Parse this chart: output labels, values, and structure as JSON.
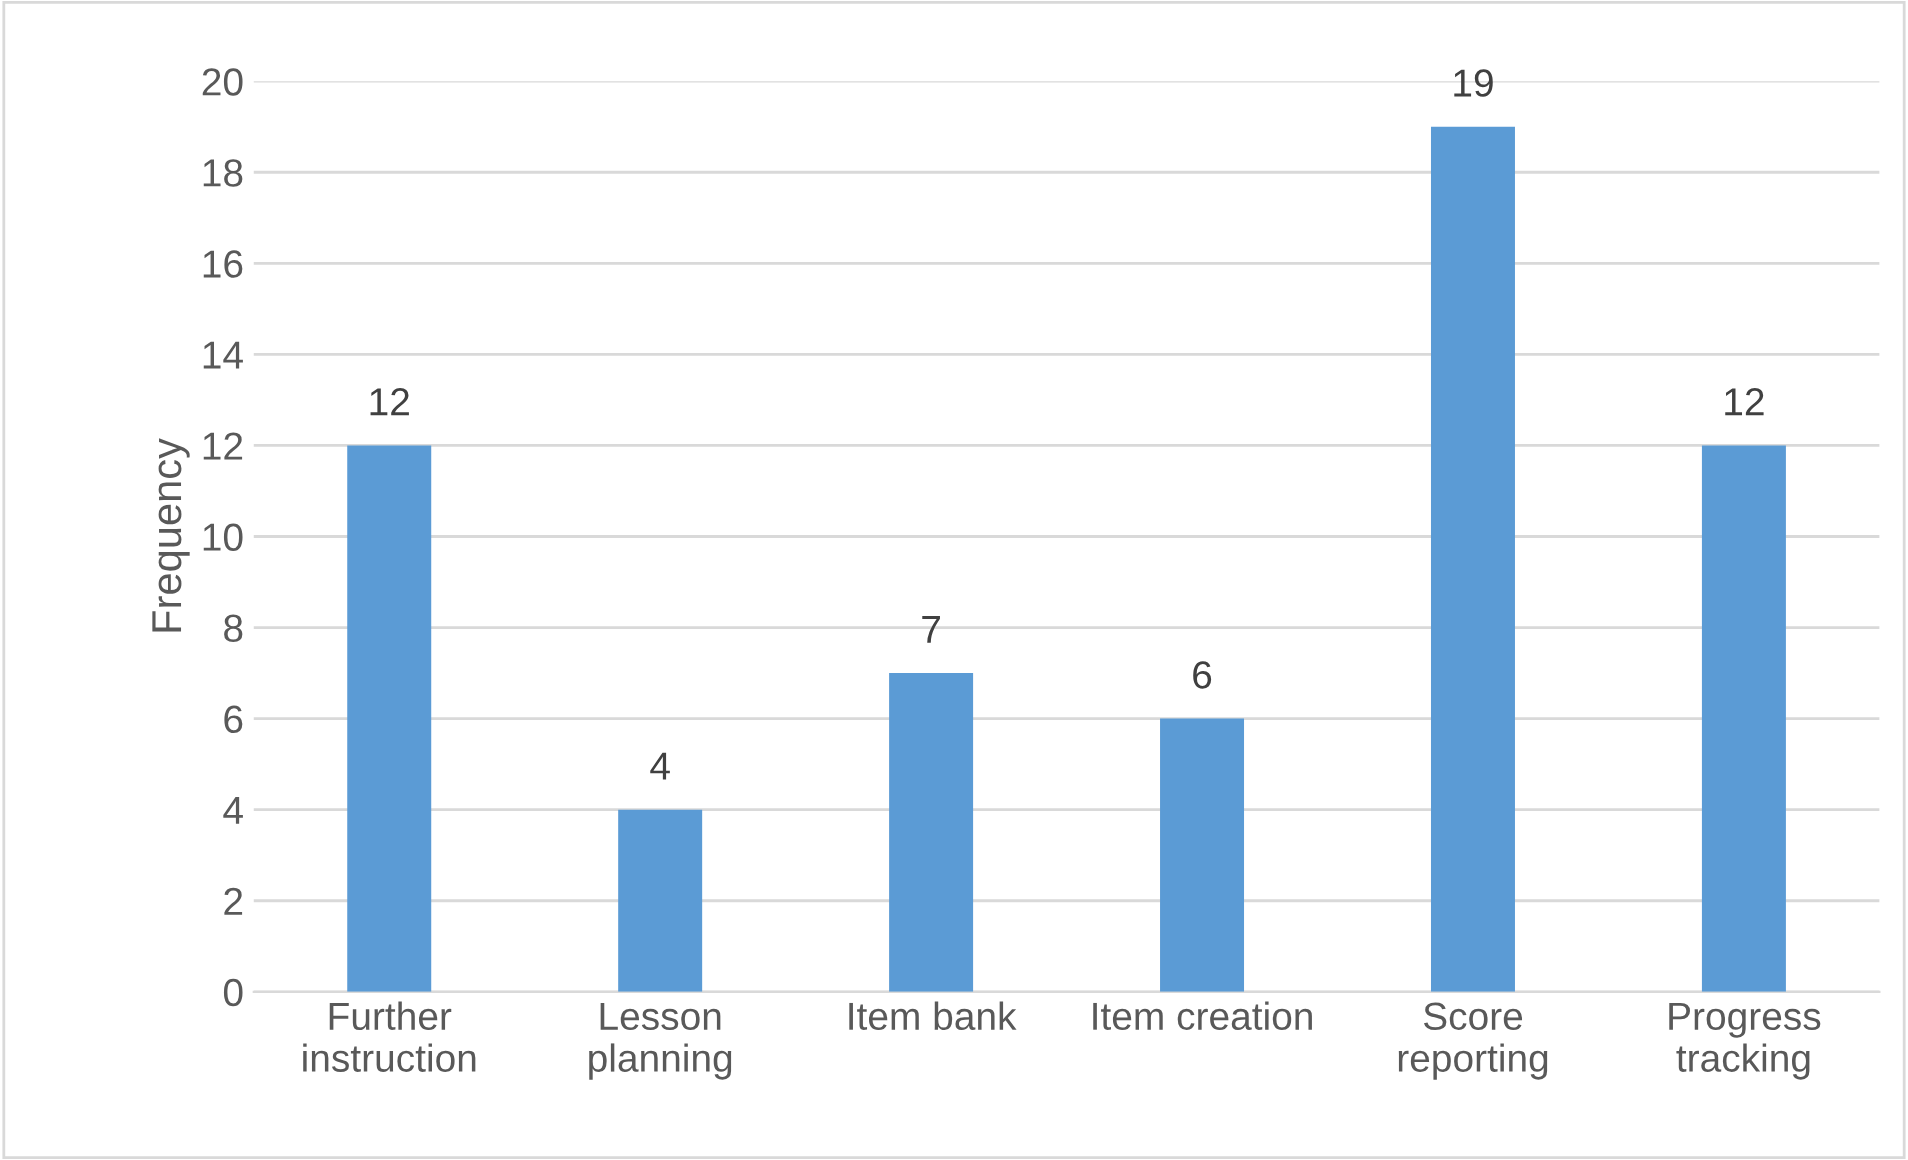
{
  "chart_data": {
    "type": "bar",
    "ylabel": "Frequency",
    "categories": [
      "Further\ninstruction",
      "Lesson\nplanning",
      "Item bank",
      "Item creation",
      "Score\nreporting",
      "Progress\ntracking"
    ],
    "values": [
      12,
      4,
      7,
      6,
      19,
      12
    ],
    "color": "#5b9bd5",
    "ylim": [
      0,
      20
    ],
    "yticks": [
      0,
      2,
      4,
      6,
      8,
      10,
      12,
      14,
      16,
      18,
      20
    ],
    "grid": "y",
    "data_labels": true,
    "legend": false
  }
}
